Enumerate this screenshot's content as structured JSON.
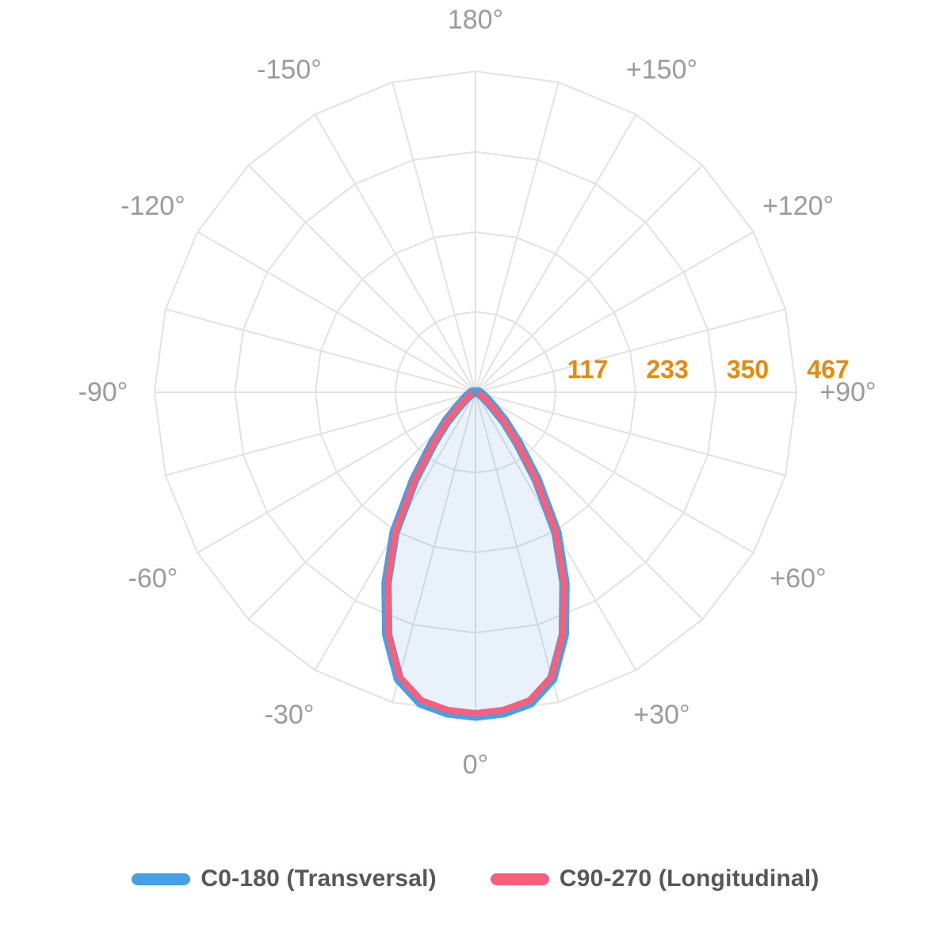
{
  "chart_data": {
    "type": "polar",
    "description": "Photometric polar intensity diagram (light distribution curve), 0° at bottom (nadir), symmetric lobe pointing down",
    "axis": {
      "max": 467,
      "ticks": [
        117,
        233,
        350,
        467
      ],
      "tick_color": "#E88A0B",
      "angle_step_deg": 15,
      "angle_labels": [
        {
          "text": "180°",
          "angle": 180
        },
        {
          "text": "-150°",
          "angle": -150
        },
        {
          "text": "+150°",
          "angle": 150
        },
        {
          "text": "-120°",
          "angle": -120
        },
        {
          "text": "+120°",
          "angle": 120
        },
        {
          "text": "-90°",
          "angle": -90
        },
        {
          "text": "+90°",
          "angle": 90
        },
        {
          "text": "-60°",
          "angle": -60
        },
        {
          "text": "+60°",
          "angle": 60
        },
        {
          "text": "-30°",
          "angle": -30
        },
        {
          "text": "+30°",
          "angle": 30
        },
        {
          "text": "0°",
          "angle": 0
        }
      ],
      "grid_color": "#E2E2E2",
      "label_color": "#9B9B9B"
    },
    "series": [
      {
        "name": "C0-180 (Transversal)",
        "color": "#45A1E3",
        "fill": "rgba(70,150,225,0.12)",
        "angles_deg": [
          -90,
          -85,
          -80,
          -75,
          -70,
          -65,
          -60,
          -55,
          -50,
          -45,
          -40,
          -35,
          -30,
          -25,
          -20,
          -15,
          -10,
          -5,
          0,
          5,
          10,
          15,
          20,
          25,
          30,
          35,
          40,
          45,
          50,
          55,
          60,
          65,
          70,
          75,
          80,
          85,
          90
        ],
        "values": [
          0,
          1,
          2,
          3,
          5,
          8,
          12,
          18,
          30,
          56,
          92,
          152,
          232,
          303,
          372,
          428,
          455,
          464,
          467,
          464,
          455,
          428,
          372,
          303,
          232,
          152,
          92,
          56,
          30,
          18,
          12,
          8,
          5,
          3,
          2,
          1,
          0
        ]
      },
      {
        "name": "C90-270 (Longitudinal)",
        "color": "#F5607C",
        "fill": "none",
        "angles_deg": [
          -90,
          -85,
          -80,
          -75,
          -70,
          -65,
          -60,
          -55,
          -50,
          -45,
          -40,
          -35,
          -30,
          -25,
          -20,
          -15,
          -10,
          -5,
          0,
          5,
          10,
          15,
          20,
          25,
          30,
          35,
          40,
          45,
          50,
          55,
          60,
          65,
          70,
          75,
          80,
          85,
          90
        ],
        "values": [
          0,
          1,
          2,
          3,
          5,
          8,
          12,
          18,
          30,
          56,
          92,
          152,
          232,
          303,
          372,
          428,
          455,
          464,
          467,
          464,
          455,
          428,
          372,
          303,
          232,
          152,
          92,
          56,
          30,
          18,
          12,
          8,
          5,
          3,
          2,
          1,
          0
        ]
      }
    ]
  },
  "legend": {
    "items": [
      {
        "label": "C0-180 (Transversal)",
        "color": "#45A1E3"
      },
      {
        "label": "C90-270 (Longitudinal)",
        "color": "#F5607C"
      }
    ]
  }
}
